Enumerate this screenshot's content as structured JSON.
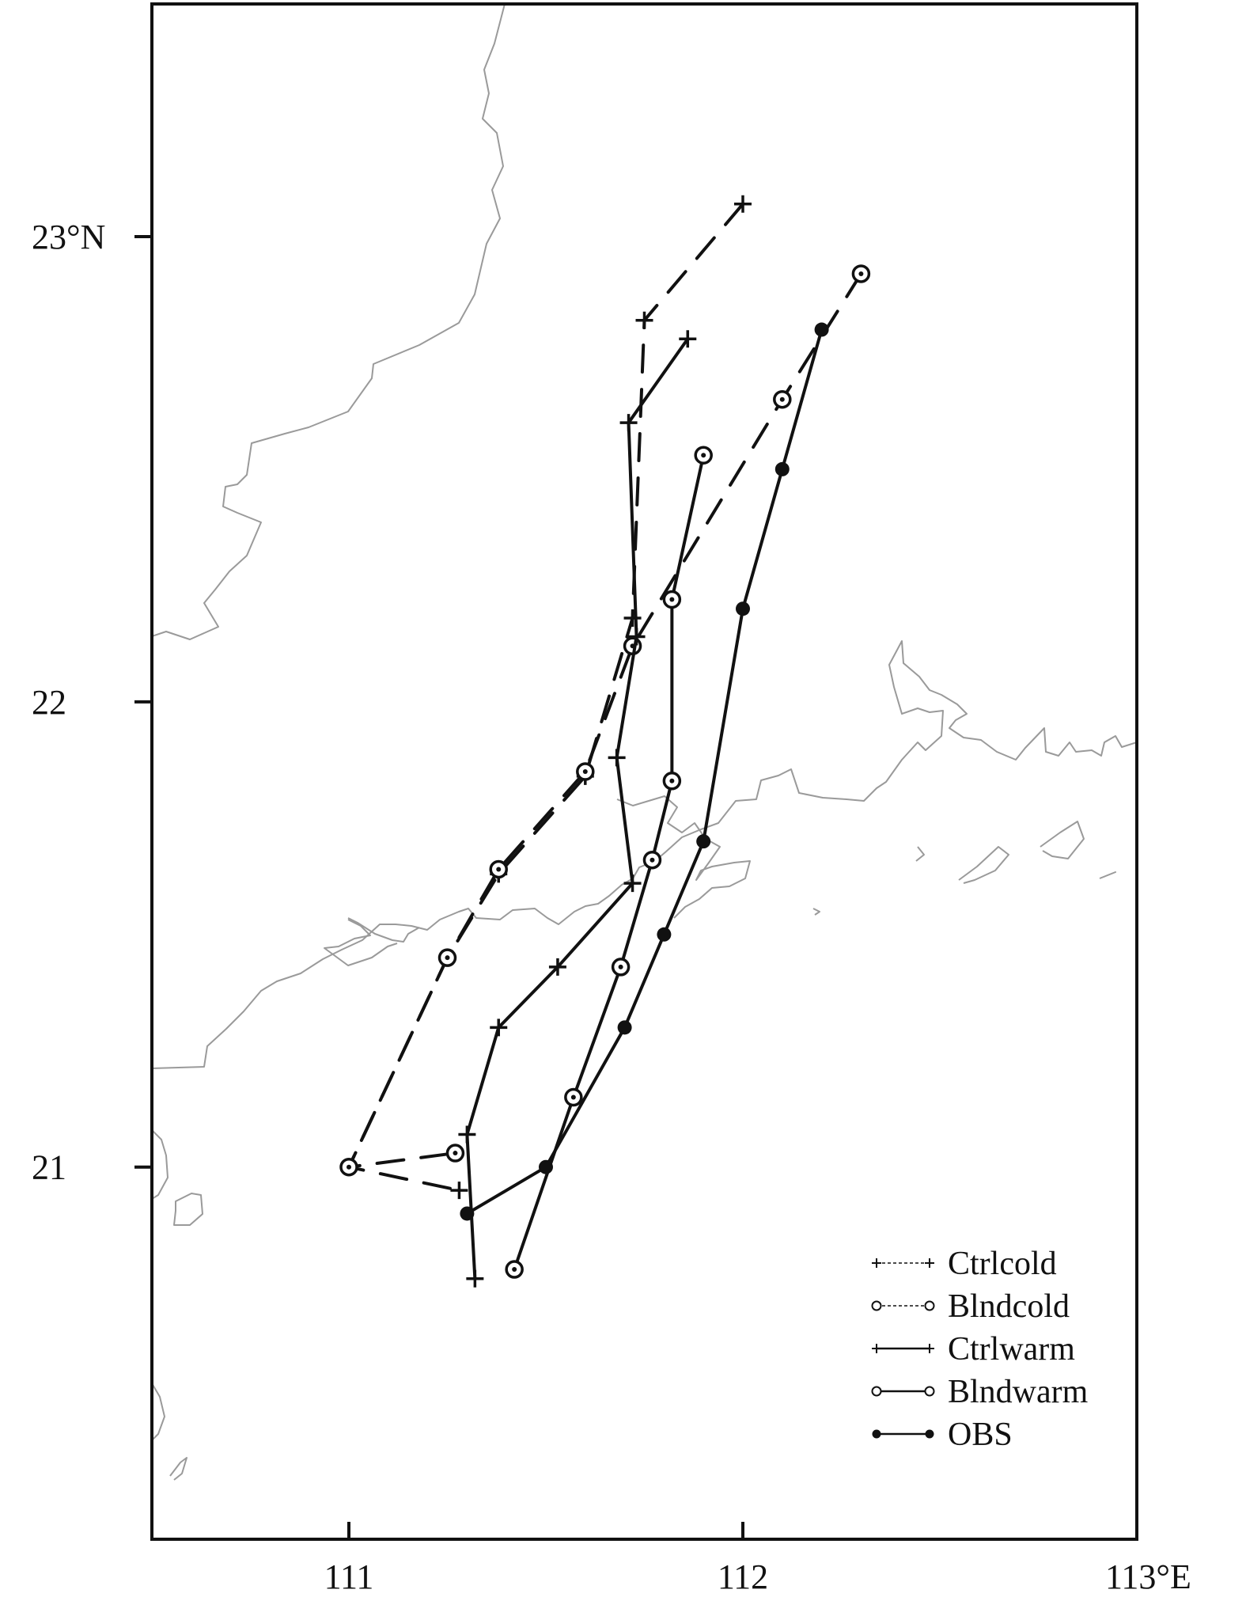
{
  "chart_data": {
    "type": "line",
    "xlim": [
      110.5,
      113.0
    ],
    "ylim": [
      20.2,
      23.5
    ],
    "x_ticks": [
      {
        "value": 111,
        "label": "111"
      },
      {
        "value": 112,
        "label": "112"
      },
      {
        "value": 113,
        "label": "113°E"
      }
    ],
    "y_ticks": [
      {
        "value": 21,
        "label": "21"
      },
      {
        "value": 22,
        "label": "22"
      },
      {
        "value": 23,
        "label": "23°N"
      }
    ],
    "grid": false,
    "legend_position": "bottom-right",
    "colors": {
      "track": "#111111",
      "coast": "#9a9a9a",
      "frame": "#111111"
    },
    "series": [
      {
        "name": "Ctrlcold",
        "line": "dashed",
        "marker": "plus",
        "points": [
          [
            112.0,
            23.07
          ],
          [
            111.75,
            22.82
          ],
          [
            111.72,
            22.18
          ],
          [
            111.6,
            21.84
          ],
          [
            111.38,
            21.63
          ],
          [
            111.25,
            21.45
          ],
          [
            111.0,
            21.0
          ],
          [
            111.28,
            20.95
          ]
        ]
      },
      {
        "name": "Blndcold",
        "line": "dashed",
        "marker": "circle",
        "points": [
          [
            112.3,
            22.92
          ],
          [
            112.1,
            22.65
          ],
          [
            111.72,
            22.12
          ],
          [
            111.6,
            21.85
          ],
          [
            111.38,
            21.64
          ],
          [
            111.25,
            21.45
          ],
          [
            111.0,
            21.0
          ],
          [
            111.27,
            21.03
          ]
        ]
      },
      {
        "name": "Ctrlwarm",
        "line": "solid",
        "marker": "plus",
        "points": [
          [
            111.86,
            22.78
          ],
          [
            111.71,
            22.6
          ],
          [
            111.73,
            22.14
          ],
          [
            111.68,
            21.88
          ],
          [
            111.72,
            21.61
          ],
          [
            111.53,
            21.43
          ],
          [
            111.38,
            21.3
          ],
          [
            111.3,
            21.07
          ],
          [
            111.32,
            20.76
          ]
        ]
      },
      {
        "name": "Blndwarm",
        "line": "solid",
        "marker": "circle",
        "points": [
          [
            111.9,
            22.53
          ],
          [
            111.82,
            22.22
          ],
          [
            111.82,
            21.83
          ],
          [
            111.77,
            21.66
          ],
          [
            111.69,
            21.43
          ],
          [
            111.57,
            21.15
          ],
          [
            111.42,
            20.78
          ]
        ]
      },
      {
        "name": "OBS",
        "line": "solid",
        "marker": "dot",
        "points": [
          [
            112.2,
            22.8
          ],
          [
            112.1,
            22.5
          ],
          [
            112.0,
            22.2
          ],
          [
            111.9,
            21.7
          ],
          [
            111.8,
            21.5
          ],
          [
            111.7,
            21.3
          ],
          [
            111.5,
            21.0
          ],
          [
            111.3,
            20.9
          ]
        ]
      }
    ]
  }
}
